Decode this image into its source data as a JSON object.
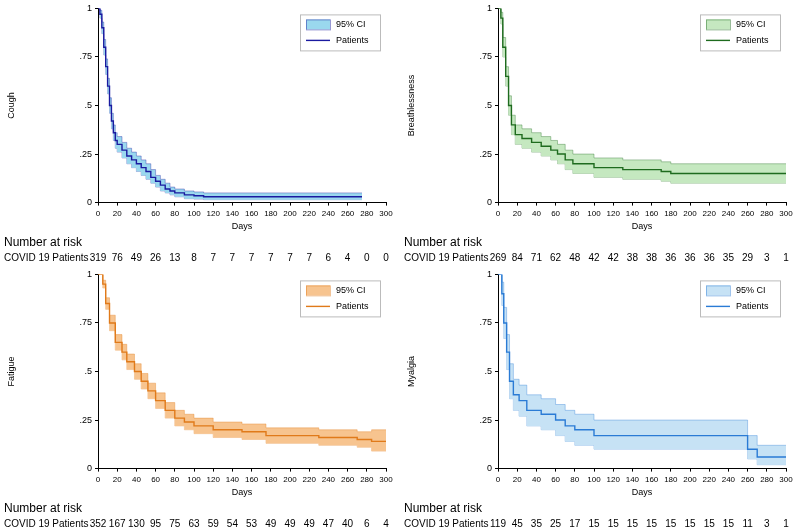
{
  "chart_data": [
    {
      "type": "line",
      "ylabel": "Cough",
      "xlabel": "Days",
      "grid": false,
      "legend": "upper right",
      "xlim": [
        0,
        300
      ],
      "xticks": [
        0,
        20,
        40,
        60,
        80,
        100,
        120,
        140,
        160,
        180,
        200,
        220,
        240,
        260,
        280,
        300
      ],
      "ylim": [
        0,
        1
      ],
      "yticks": [
        0,
        {
          "value": 0.25,
          "label": ".25"
        },
        {
          "value": 0.5,
          "label": ".5"
        },
        {
          "value": 0.75,
          "label": ".75"
        },
        1
      ],
      "x": [
        0,
        2,
        4,
        6,
        8,
        10,
        12,
        14,
        16,
        18,
        20,
        25,
        30,
        35,
        40,
        45,
        50,
        55,
        60,
        65,
        70,
        75,
        80,
        90,
        100,
        110,
        275
      ],
      "series": [
        {
          "name": "95% CI",
          "color": "#9ad8ee",
          "lower": [
            1,
            0.95,
            0.87,
            0.76,
            0.66,
            0.56,
            0.46,
            0.38,
            0.32,
            0.28,
            0.26,
            0.23,
            0.2,
            0.18,
            0.16,
            0.14,
            0.12,
            0.1,
            0.08,
            0.06,
            0.05,
            0.04,
            0.03,
            0.02,
            0.018,
            0.015,
            0.015
          ],
          "upper": [
            1,
            0.99,
            0.93,
            0.84,
            0.74,
            0.64,
            0.54,
            0.46,
            0.4,
            0.36,
            0.34,
            0.31,
            0.28,
            0.26,
            0.24,
            0.22,
            0.2,
            0.17,
            0.14,
            0.12,
            0.1,
            0.08,
            0.07,
            0.06,
            0.055,
            0.05,
            0.05
          ]
        },
        {
          "name": "Patients",
          "color": "#1a1aa0",
          "values": [
            1,
            0.97,
            0.9,
            0.8,
            0.7,
            0.6,
            0.5,
            0.42,
            0.36,
            0.32,
            0.3,
            0.27,
            0.24,
            0.22,
            0.2,
            0.18,
            0.16,
            0.13,
            0.11,
            0.09,
            0.07,
            0.06,
            0.05,
            0.04,
            0.035,
            0.03,
            0.03
          ]
        }
      ],
      "at_risk": {
        "title": "Number at risk",
        "label": "COVID 19 Patients",
        "x": [
          0,
          20,
          40,
          60,
          80,
          100,
          120,
          140,
          160,
          180,
          200,
          220,
          240,
          260,
          280,
          300
        ],
        "values": [
          319,
          76,
          49,
          26,
          13,
          8,
          7,
          7,
          7,
          7,
          7,
          7,
          6,
          4,
          0,
          0
        ]
      }
    },
    {
      "type": "line",
      "ylabel": "Breathlessness",
      "xlabel": "Days",
      "grid": false,
      "legend": "upper right",
      "xlim": [
        0,
        300
      ],
      "xticks": [
        0,
        20,
        40,
        60,
        80,
        100,
        120,
        140,
        160,
        180,
        200,
        220,
        240,
        260,
        280,
        300
      ],
      "ylim": [
        0,
        1
      ],
      "yticks": [
        0,
        {
          "value": 0.25,
          "label": ".25"
        },
        {
          "value": 0.5,
          "label": ".5"
        },
        {
          "value": 0.75,
          "label": ".75"
        },
        1
      ],
      "x": [
        0,
        3,
        5,
        8,
        11,
        14,
        18,
        25,
        35,
        45,
        55,
        62,
        70,
        78,
        100,
        130,
        170,
        180,
        300
      ],
      "series": [
        {
          "name": "95% CI",
          "color": "#c5e8c0",
          "lower": [
            1,
            0.92,
            0.75,
            0.6,
            0.45,
            0.35,
            0.3,
            0.28,
            0.26,
            0.24,
            0.22,
            0.2,
            0.17,
            0.15,
            0.13,
            0.12,
            0.11,
            0.1,
            0.1
          ],
          "upper": [
            1,
            0.98,
            0.85,
            0.7,
            0.55,
            0.45,
            0.4,
            0.38,
            0.36,
            0.34,
            0.32,
            0.3,
            0.27,
            0.25,
            0.23,
            0.22,
            0.21,
            0.2,
            0.2
          ]
        },
        {
          "name": "Patients",
          "color": "#1e6b1e",
          "values": [
            1,
            0.95,
            0.8,
            0.65,
            0.5,
            0.4,
            0.35,
            0.33,
            0.31,
            0.29,
            0.27,
            0.25,
            0.22,
            0.2,
            0.18,
            0.17,
            0.16,
            0.15,
            0.15
          ]
        }
      ],
      "at_risk": {
        "title": "Number at risk",
        "label": "COVID 19 Patients",
        "x": [
          0,
          20,
          40,
          60,
          80,
          100,
          120,
          140,
          160,
          180,
          200,
          220,
          240,
          260,
          280,
          300
        ],
        "values": [
          269,
          84,
          71,
          62,
          48,
          42,
          42,
          38,
          38,
          36,
          36,
          36,
          35,
          29,
          3,
          1
        ]
      }
    },
    {
      "type": "line",
      "ylabel": "Fatigue",
      "xlabel": "Days",
      "grid": false,
      "legend": "upper right",
      "xlim": [
        0,
        300
      ],
      "xticks": [
        0,
        20,
        40,
        60,
        80,
        100,
        120,
        140,
        160,
        180,
        200,
        220,
        240,
        260,
        280,
        300
      ],
      "ylim": [
        0,
        1
      ],
      "yticks": [
        0,
        {
          "value": 0.25,
          "label": ".25"
        },
        {
          "value": 0.5,
          "label": ".5"
        },
        {
          "value": 0.75,
          "label": ".75"
        },
        1
      ],
      "x": [
        0,
        5,
        8,
        12,
        18,
        25,
        30,
        38,
        45,
        52,
        60,
        70,
        80,
        90,
        100,
        120,
        150,
        175,
        230,
        270,
        285,
        300
      ],
      "series": [
        {
          "name": "95% CI",
          "color": "#f7c48f",
          "lower": [
            1,
            0.93,
            0.82,
            0.71,
            0.61,
            0.56,
            0.51,
            0.46,
            0.41,
            0.36,
            0.31,
            0.26,
            0.22,
            0.2,
            0.18,
            0.16,
            0.15,
            0.13,
            0.12,
            0.11,
            0.09,
            0.09
          ],
          "upper": [
            1,
            0.97,
            0.88,
            0.79,
            0.69,
            0.64,
            0.59,
            0.54,
            0.49,
            0.44,
            0.39,
            0.34,
            0.3,
            0.28,
            0.26,
            0.24,
            0.23,
            0.21,
            0.2,
            0.19,
            0.2,
            0.2
          ]
        },
        {
          "name": "Patients",
          "color": "#e07a1a",
          "values": [
            1,
            0.95,
            0.85,
            0.75,
            0.65,
            0.6,
            0.55,
            0.5,
            0.45,
            0.4,
            0.35,
            0.3,
            0.26,
            0.24,
            0.22,
            0.2,
            0.19,
            0.17,
            0.16,
            0.15,
            0.14,
            0.14
          ]
        }
      ],
      "at_risk": {
        "title": "Number at risk",
        "label": "COVID 19 Patients",
        "x": [
          0,
          20,
          40,
          60,
          80,
          100,
          120,
          140,
          160,
          180,
          200,
          220,
          240,
          260,
          280,
          300
        ],
        "values": [
          352,
          167,
          130,
          95,
          75,
          63,
          59,
          54,
          53,
          49,
          49,
          49,
          47,
          40,
          6,
          4
        ]
      }
    },
    {
      "type": "line",
      "ylabel": "Myalgia",
      "xlabel": "Days",
      "grid": false,
      "legend": "upper right",
      "xlim": [
        0,
        300
      ],
      "xticks": [
        0,
        20,
        40,
        60,
        80,
        100,
        120,
        140,
        160,
        180,
        200,
        220,
        240,
        260,
        280,
        300
      ],
      "ylim": [
        0,
        1
      ],
      "yticks": [
        0,
        {
          "value": 0.25,
          "label": ".25"
        },
        {
          "value": 0.5,
          "label": ".5"
        },
        {
          "value": 0.75,
          "label": ".75"
        },
        1
      ],
      "x": [
        0,
        4,
        6,
        9,
        12,
        16,
        22,
        30,
        45,
        60,
        70,
        80,
        100,
        250,
        260,
        270,
        300
      ],
      "series": [
        {
          "name": "95% CI",
          "color": "#c6e2f5",
          "lower": [
            1,
            0.84,
            0.67,
            0.51,
            0.36,
            0.3,
            0.27,
            0.22,
            0.2,
            0.17,
            0.14,
            0.12,
            0.1,
            0.1,
            0.05,
            0.02,
            0.02
          ],
          "upper": [
            1,
            0.96,
            0.83,
            0.69,
            0.54,
            0.46,
            0.43,
            0.38,
            0.36,
            0.33,
            0.3,
            0.28,
            0.25,
            0.25,
            0.17,
            0.12,
            0.12
          ]
        },
        {
          "name": "Patients",
          "color": "#2a7bd5",
          "values": [
            1,
            0.9,
            0.75,
            0.6,
            0.45,
            0.38,
            0.35,
            0.3,
            0.28,
            0.25,
            0.22,
            0.2,
            0.17,
            0.17,
            0.1,
            0.06,
            0.06
          ]
        }
      ],
      "at_risk": {
        "title": "Number at risk",
        "label": "COVID 19 Patients",
        "x": [
          0,
          20,
          40,
          60,
          80,
          100,
          120,
          140,
          160,
          180,
          200,
          220,
          240,
          260,
          280,
          300
        ],
        "values": [
          119,
          45,
          35,
          25,
          17,
          15,
          15,
          15,
          15,
          15,
          15,
          15,
          15,
          11,
          3,
          1
        ]
      }
    }
  ]
}
